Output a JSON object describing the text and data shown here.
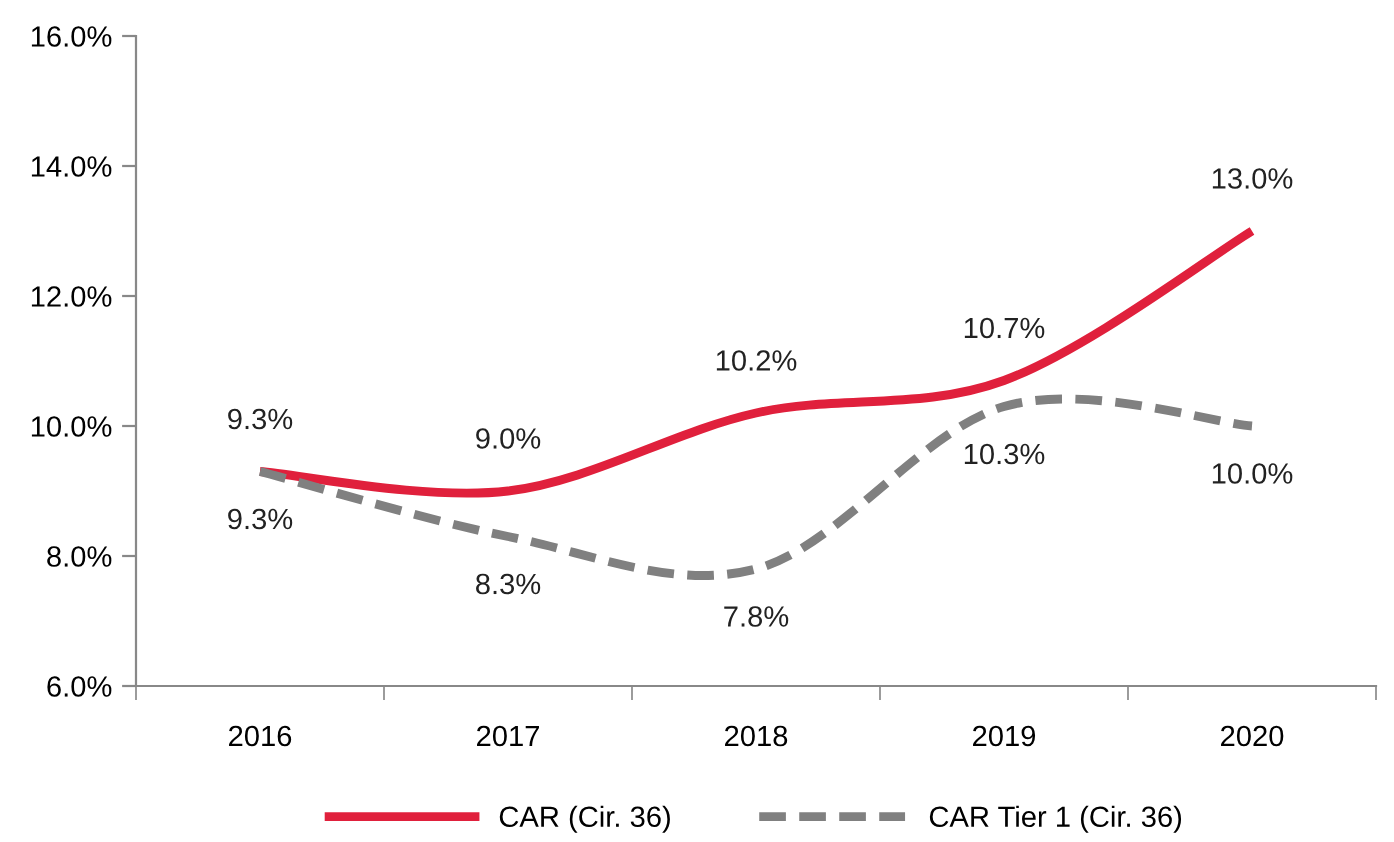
{
  "chart_data": {
    "type": "line",
    "categories": [
      "2016",
      "2017",
      "2018",
      "2019",
      "2020"
    ],
    "series": [
      {
        "name": "CAR (Cir. 36)",
        "color": "#e0203c",
        "line_style": "solid",
        "values": [
          9.3,
          9.0,
          10.2,
          10.7,
          13.0
        ],
        "value_labels": [
          "9.3%",
          "9.0%",
          "10.2%",
          "10.7%",
          "13.0%"
        ]
      },
      {
        "name": "CAR Tier 1 (Cir. 36)",
        "color": "#808080",
        "line_style": "dashed",
        "values": [
          9.3,
          8.3,
          7.8,
          10.3,
          10.0
        ],
        "value_labels": [
          "9.3%",
          "8.3%",
          "7.8%",
          "10.3%",
          "10.0%"
        ]
      }
    ],
    "ylim": [
      6.0,
      16.0
    ],
    "yticks": [
      {
        "value": 6,
        "label": "6.0%"
      },
      {
        "value": 8,
        "label": "8.0%"
      },
      {
        "value": 10,
        "label": "10.0%"
      },
      {
        "value": 12,
        "label": "12.0%"
      },
      {
        "value": 14,
        "label": "14.0%"
      },
      {
        "value": 16,
        "label": "16.0%"
      }
    ],
    "grid": false,
    "legend": "bottom",
    "marker": "none"
  }
}
